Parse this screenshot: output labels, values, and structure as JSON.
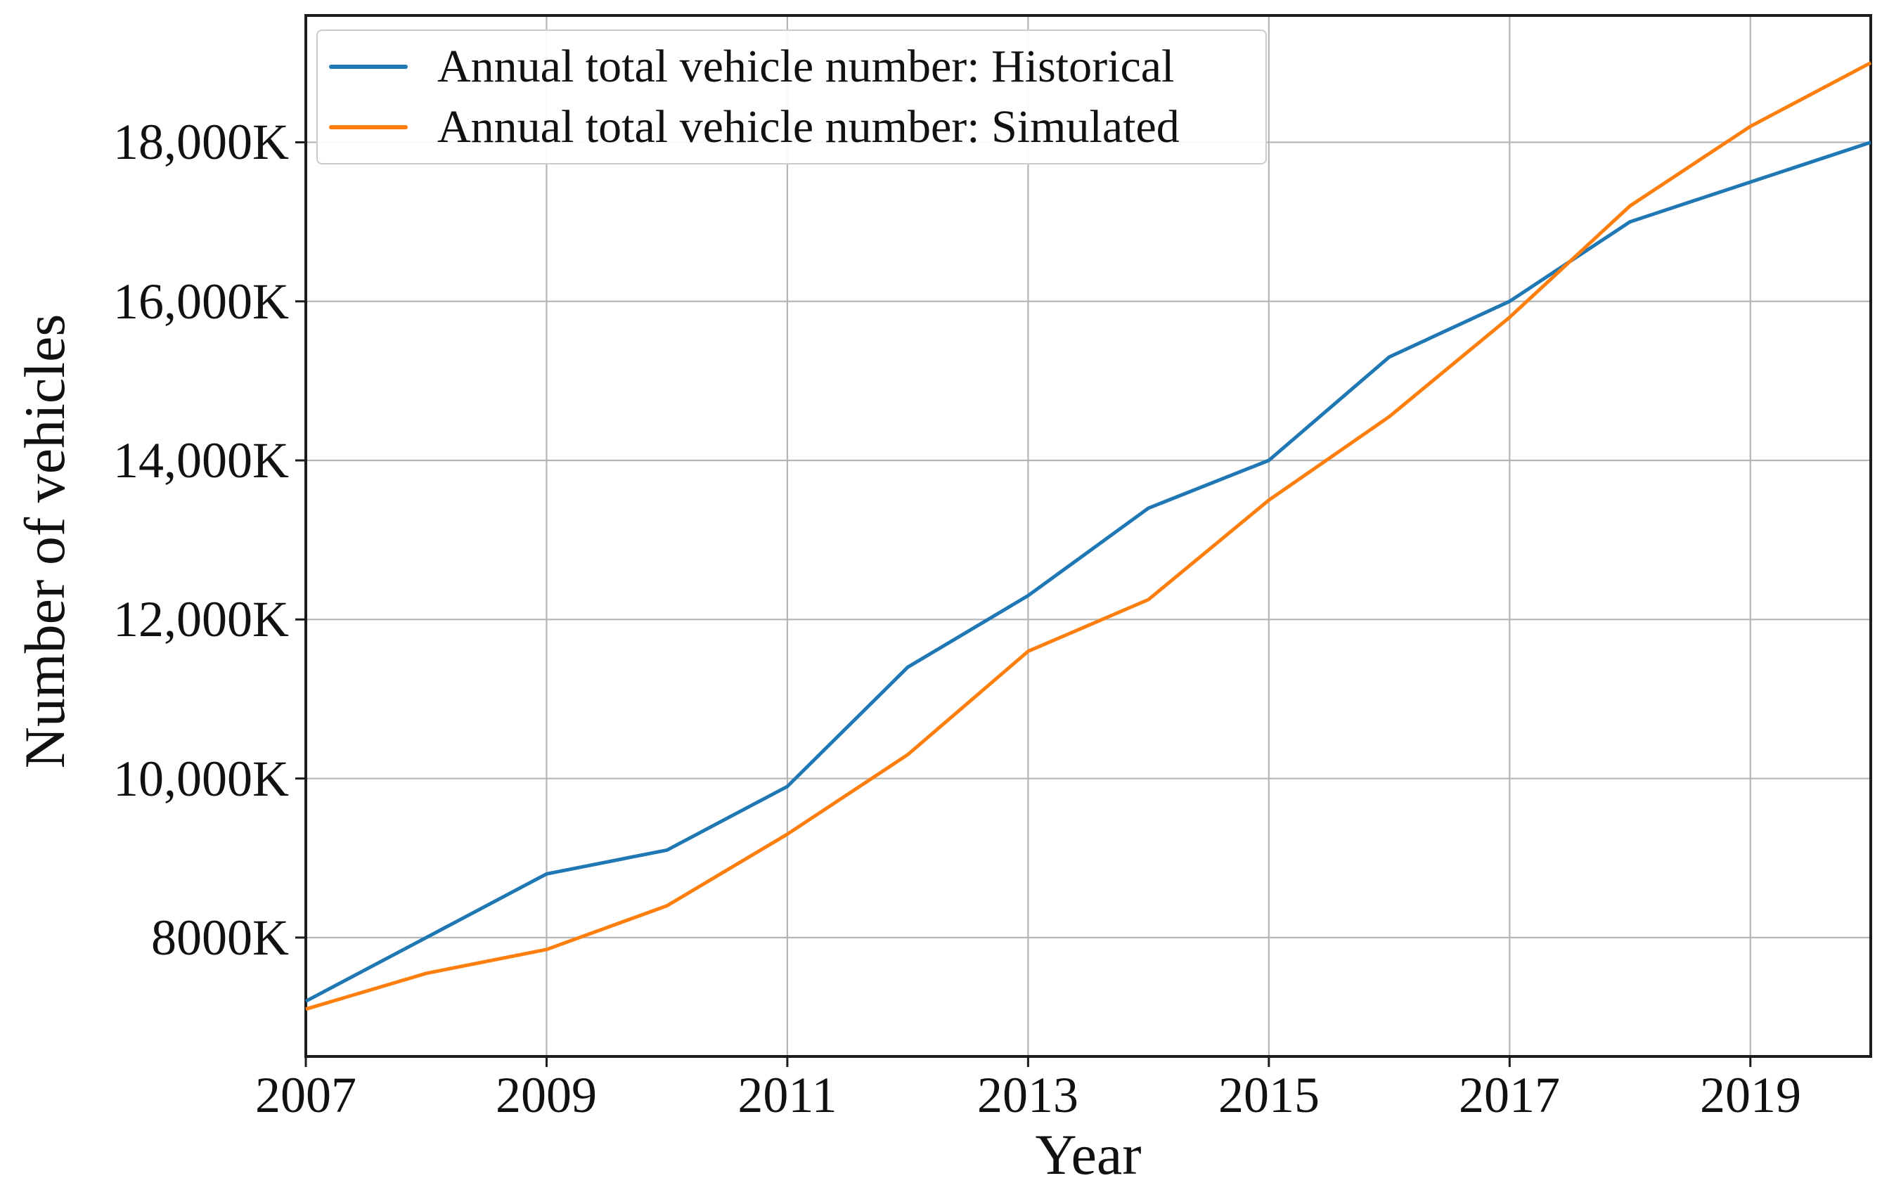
{
  "figure": {
    "background": "#ffffff"
  },
  "chart_data": {
    "type": "line",
    "title": "",
    "xlabel": "Year",
    "ylabel": "Number of vehicles",
    "x": [
      2007,
      2008,
      2009,
      2010,
      2011,
      2012,
      2013,
      2014,
      2015,
      2016,
      2017,
      2018,
      2019,
      2020
    ],
    "series": [
      {
        "name": "Annual total vehicle number: Historical",
        "color": "#1f77b4",
        "values": [
          7200,
          8000,
          8800,
          9100,
          9900,
          11400,
          12300,
          13400,
          14000,
          15300,
          16000,
          17000,
          17500,
          18000
        ]
      },
      {
        "name": "Annual total vehicle number: Simulated",
        "color": "#ff7f0e",
        "values": [
          7100,
          7550,
          7850,
          8400,
          9300,
          10300,
          11600,
          12250,
          13500,
          14550,
          15800,
          17200,
          18200,
          19000
        ]
      }
    ],
    "xlim": [
      2007,
      2020
    ],
    "ylim": [
      6505,
      19595
    ],
    "x_ticks": [
      {
        "value": 2007,
        "label": "2007"
      },
      {
        "value": 2009,
        "label": "2009"
      },
      {
        "value": 2011,
        "label": "2011"
      },
      {
        "value": 2013,
        "label": "2013"
      },
      {
        "value": 2015,
        "label": "2015"
      },
      {
        "value": 2017,
        "label": "2017"
      },
      {
        "value": 2019,
        "label": "2019"
      }
    ],
    "y_ticks": [
      {
        "value": 8000,
        "label": "8000K"
      },
      {
        "value": 10000,
        "label": "10,000K"
      },
      {
        "value": 12000,
        "label": "12,000K"
      },
      {
        "value": 14000,
        "label": "14,000K"
      },
      {
        "value": 16000,
        "label": "16,000K"
      },
      {
        "value": 18000,
        "label": "18,000K"
      }
    ],
    "grid": true,
    "grid_color": "#b5b5b5",
    "spine_color": "#1c1c1c",
    "tick_color": "#1c1c1c",
    "legend_position": "upper left"
  }
}
